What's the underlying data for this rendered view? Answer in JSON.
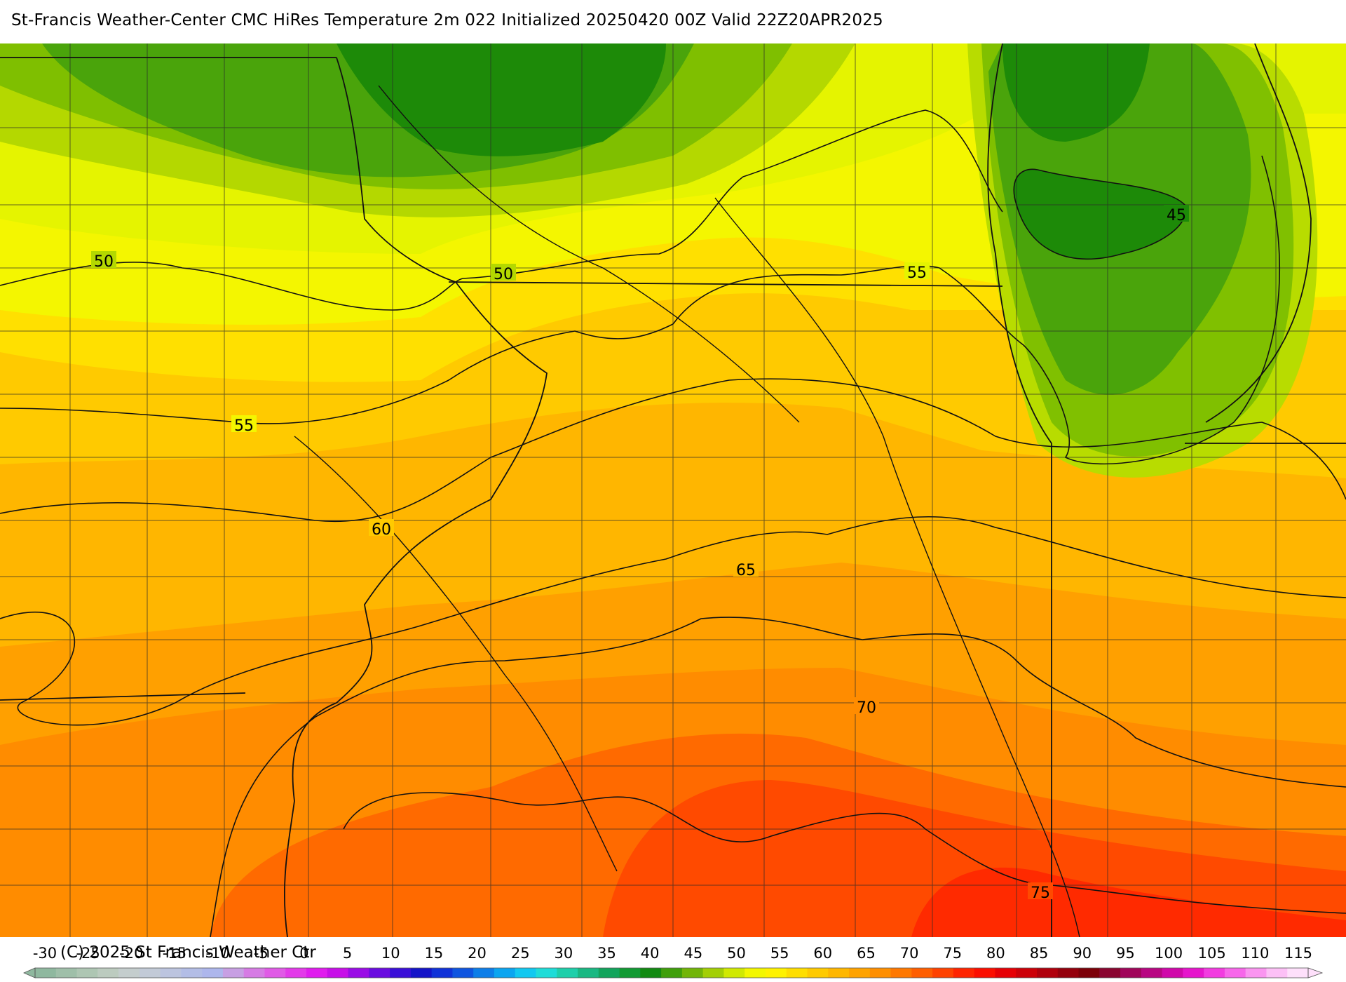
{
  "header": {
    "title": "St-Francis Weather-Center CMC HiRes Temperature 2m  022 Initialized 20250420 00Z Valid 22Z20APR2025"
  },
  "map": {
    "variable": "Temperature 2m",
    "contour_labels": [
      "50",
      "50",
      "55",
      "55",
      "45",
      "60",
      "65",
      "70",
      "75"
    ]
  },
  "legend": {
    "tick_labels": [
      "-30",
      "-25",
      "-20",
      "-15",
      "-10",
      "-5",
      "0",
      "5",
      "10",
      "15",
      "20",
      "25",
      "30",
      "35",
      "40",
      "45",
      "50",
      "55",
      "60",
      "65",
      "70",
      "75",
      "80",
      "85",
      "90",
      "95",
      "100",
      "105",
      "110",
      "115"
    ],
    "colors": [
      "#8fb89f",
      "#9fbfa9",
      "#aec6b3",
      "#bccbbf",
      "#c4cdcd",
      "#c2cad7",
      "#bcc4df",
      "#b3bde6",
      "#adb6ec",
      "#c79fe3",
      "#d67be4",
      "#e05ae6",
      "#e33ae9",
      "#e01cee",
      "#c70fe8",
      "#9a0ce6",
      "#6a0ce0",
      "#3a0fd8",
      "#1414c8",
      "#1032d8",
      "#0f55e0",
      "#0d7ee8",
      "#0ba5f0",
      "#12c8f0",
      "#1fdcd8",
      "#1ecfaa",
      "#19b882",
      "#12a45c",
      "#119a33",
      "#128a12",
      "#3f9f0b",
      "#72b508",
      "#a3cf05",
      "#d0e902",
      "#f3f700",
      "#fff200",
      "#ffde00",
      "#ffca00",
      "#ffb700",
      "#ffa300",
      "#ff8f00",
      "#ff7800",
      "#ff5e00",
      "#ff4200",
      "#ff2400",
      "#fb0e00",
      "#e60005",
      "#cc0008",
      "#b0000c",
      "#94000c",
      "#7c0008",
      "#8a0530",
      "#a0055a",
      "#b80682",
      "#d008aa",
      "#e615cc",
      "#f23ce0",
      "#f767ea",
      "#fa95f0",
      "#fcc0f6",
      "#fee0fb"
    ]
  },
  "footer": {
    "copyright": "(C) 2025 St Francis Weather Ctr"
  }
}
